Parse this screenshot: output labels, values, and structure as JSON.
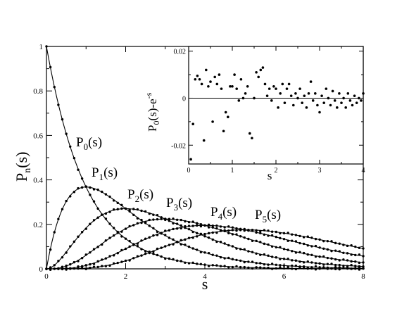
{
  "chart_data": [
    {
      "type": "line",
      "xlabel": "s",
      "ylabel": "P",
      "ylabel_sub": "n",
      "ylabel_suffix": "(s)",
      "xlim": [
        0,
        8
      ],
      "ylim": [
        0,
        1
      ],
      "x_ticks": [
        "0",
        "2",
        "4",
        "6",
        "8"
      ],
      "y_ticks": [
        "0",
        "0.2",
        "0.4",
        "0.6",
        "0.8",
        "1"
      ],
      "grid": false,
      "series": [
        {
          "name": "P0(s)",
          "label_main": "P",
          "label_sub": "0",
          "label_suffix": "(s)",
          "n": 0
        },
        {
          "name": "P1(s)",
          "label_main": "P",
          "label_sub": "1",
          "label_suffix": "(s)",
          "n": 1
        },
        {
          "name": "P2(s)",
          "label_main": "P",
          "label_sub": "2",
          "label_suffix": "(s)",
          "n": 2
        },
        {
          "name": "P3(s)",
          "label_main": "P",
          "label_sub": "3",
          "label_suffix": "(s)",
          "n": 3
        },
        {
          "name": "P4(s)",
          "label_main": "P",
          "label_sub": "4",
          "label_suffix": "(s)",
          "n": 4
        },
        {
          "name": "P5(s)",
          "label_main": "P",
          "label_sub": "5",
          "label_suffix": "(s)",
          "n": 5
        }
      ],
      "sample_x_step": 0.1
    },
    {
      "type": "scatter",
      "xlabel": "s",
      "ylabel": "P",
      "ylabel_sub": "0",
      "ylabel_mid": "(s)-e",
      "ylabel_sup": "-s",
      "xlim": [
        0,
        4
      ],
      "ylim": [
        -0.028,
        0.022
      ],
      "x_ticks": [
        "0",
        "1",
        "2",
        "3",
        "4"
      ],
      "y_ticks": [
        "-0.02",
        "0",
        "0.02"
      ],
      "zero_line": true,
      "points": [
        [
          0.05,
          -0.026
        ],
        [
          0.1,
          -0.011
        ],
        [
          0.15,
          0.008
        ],
        [
          0.2,
          0.0095
        ],
        [
          0.25,
          0.008
        ],
        [
          0.3,
          0.006
        ],
        [
          0.35,
          -0.018
        ],
        [
          0.4,
          0.012
        ],
        [
          0.45,
          0.005
        ],
        [
          0.5,
          0.007
        ],
        [
          0.55,
          -0.01
        ],
        [
          0.6,
          0.009
        ],
        [
          0.65,
          0.006
        ],
        [
          0.7,
          0.01
        ],
        [
          0.75,
          0.004
        ],
        [
          0.8,
          -0.014
        ],
        [
          0.85,
          -0.006
        ],
        [
          0.9,
          -0.008
        ],
        [
          0.95,
          0.005
        ],
        [
          1.0,
          0.005
        ],
        [
          1.05,
          0.01
        ],
        [
          1.1,
          0.004
        ],
        [
          1.15,
          -0.001
        ],
        [
          1.2,
          0.008
        ],
        [
          1.25,
          0.0
        ],
        [
          1.3,
          0.002
        ],
        [
          1.35,
          0.005
        ],
        [
          1.4,
          -0.015
        ],
        [
          1.45,
          -0.017
        ],
        [
          1.5,
          0.0
        ],
        [
          1.55,
          0.011
        ],
        [
          1.6,
          0.009
        ],
        [
          1.65,
          0.012
        ],
        [
          1.7,
          0.013
        ],
        [
          1.75,
          0.006
        ],
        [
          1.8,
          0.001
        ],
        [
          1.85,
          0.004
        ],
        [
          1.9,
          -0.001
        ],
        [
          1.95,
          0.005
        ],
        [
          2.0,
          0.004
        ],
        [
          2.05,
          -0.004
        ],
        [
          2.1,
          0.002
        ],
        [
          2.15,
          0.006
        ],
        [
          2.2,
          -0.002
        ],
        [
          2.25,
          0.004
        ],
        [
          2.3,
          0.006
        ],
        [
          2.35,
          0.001
        ],
        [
          2.4,
          -0.003
        ],
        [
          2.45,
          0.002
        ],
        [
          2.5,
          0.0
        ],
        [
          2.55,
          0.004
        ],
        [
          2.6,
          -0.002
        ],
        [
          2.65,
          0.001
        ],
        [
          2.7,
          -0.004
        ],
        [
          2.75,
          0.002
        ],
        [
          2.8,
          0.007
        ],
        [
          2.85,
          -0.001
        ],
        [
          2.9,
          0.002
        ],
        [
          2.95,
          -0.003
        ],
        [
          3.0,
          -0.006
        ],
        [
          3.05,
          0.001
        ],
        [
          3.1,
          -0.002
        ],
        [
          3.15,
          0.004
        ],
        [
          3.2,
          0.0
        ],
        [
          3.25,
          -0.003
        ],
        [
          3.3,
          0.003
        ],
        [
          3.35,
          -0.001
        ],
        [
          3.4,
          -0.004
        ],
        [
          3.45,
          0.002
        ],
        [
          3.5,
          -0.002
        ],
        [
          3.55,
          0.0
        ],
        [
          3.6,
          -0.004
        ],
        [
          3.65,
          0.002
        ],
        [
          3.7,
          -0.001
        ],
        [
          3.75,
          -0.003
        ],
        [
          3.8,
          0.001
        ],
        [
          3.85,
          -0.002
        ],
        [
          3.9,
          0.0
        ],
        [
          3.95,
          -0.001
        ],
        [
          4.0,
          0.002
        ]
      ]
    }
  ]
}
